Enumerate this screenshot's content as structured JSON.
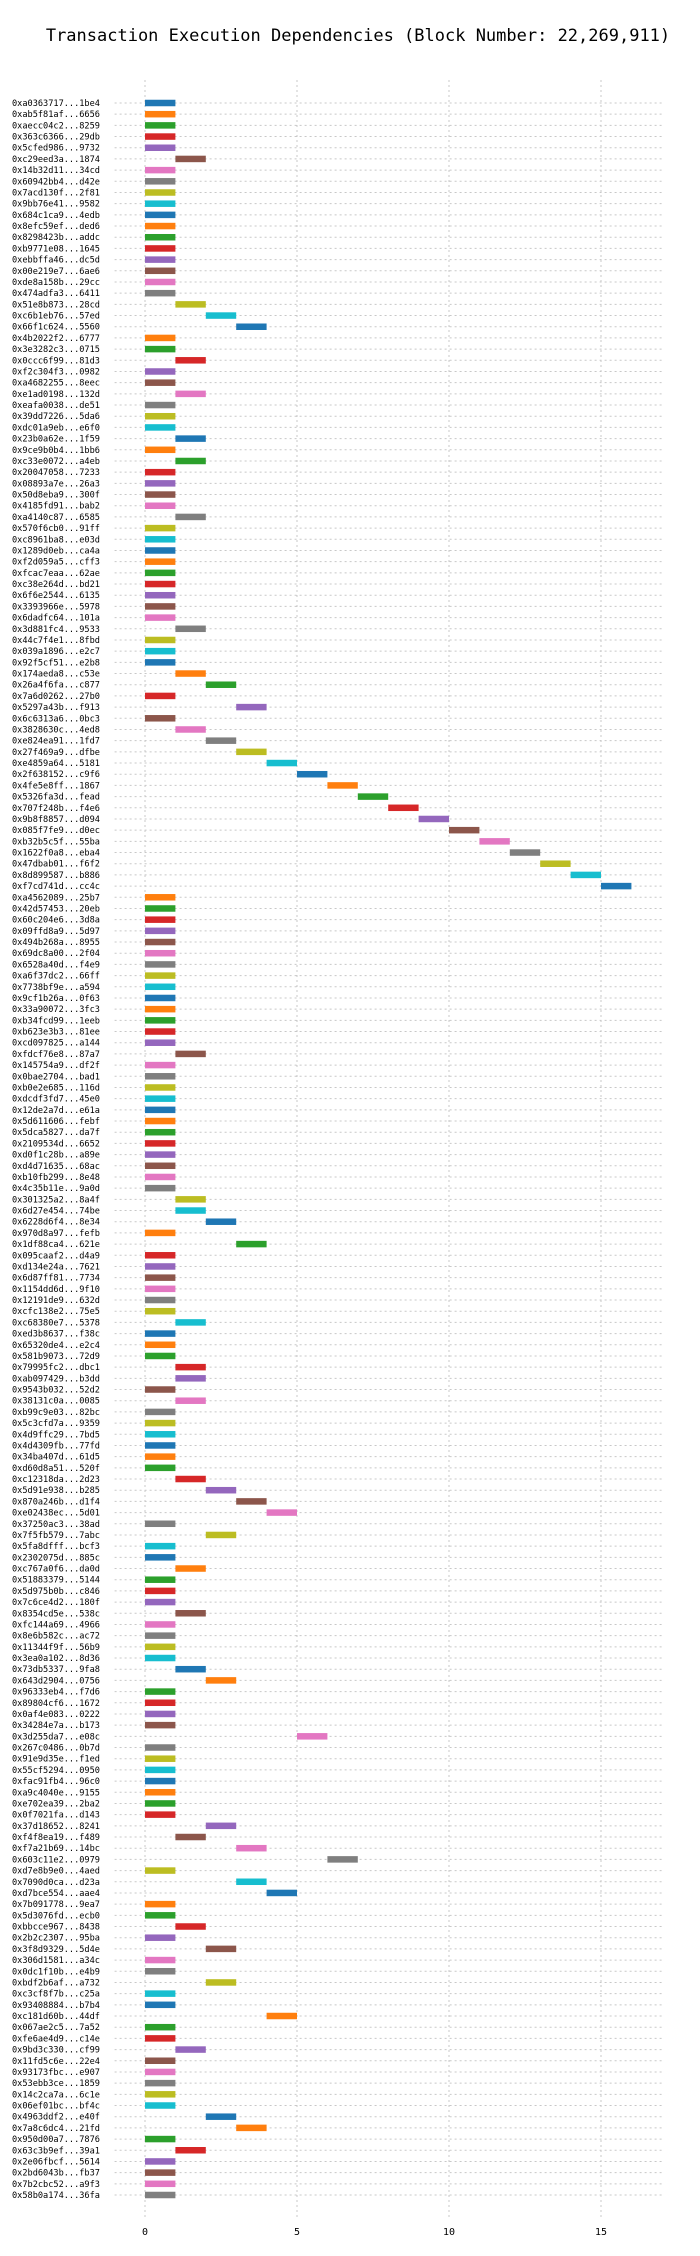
{
  "chart_data": {
    "type": "bar",
    "orientation": "horizontal-gantt",
    "title": "Transaction Execution Dependencies (Block Number: 22,269,911)",
    "xlabel": "",
    "ylabel": "",
    "xlim": [
      -1,
      17
    ],
    "xticks": [
      0,
      5,
      10,
      15
    ],
    "grid": true,
    "palette": [
      "#1f77b4",
      "#ff7f0e",
      "#2ca02c",
      "#d62728",
      "#9467bd",
      "#8c564b",
      "#e377c2",
      "#7f7f7f",
      "#bcbd22",
      "#17becf"
    ],
    "transactions": [
      {
        "label": "0xa0363717...1be4",
        "start": 0
      },
      {
        "label": "0xab5f81af...6656",
        "start": 0
      },
      {
        "label": "0xaecc04c2...8259",
        "start": 0
      },
      {
        "label": "0x363c6366...29db",
        "start": 0
      },
      {
        "label": "0x5cfed986...9732",
        "start": 0
      },
      {
        "label": "0xc29eed3a...1874",
        "start": 1
      },
      {
        "label": "0x14b32d11...34cd",
        "start": 0
      },
      {
        "label": "0x60942bb4...d42e",
        "start": 0
      },
      {
        "label": "0x7acd130f...2f81",
        "start": 0
      },
      {
        "label": "0x9bb76e41...9582",
        "start": 0
      },
      {
        "label": "0x684c1ca9...4edb",
        "start": 0
      },
      {
        "label": "0x8efc59ef...ded6",
        "start": 0
      },
      {
        "label": "0x8298423b...addc",
        "start": 0
      },
      {
        "label": "0xb9771e08...1645",
        "start": 0
      },
      {
        "label": "0xebbffa46...dc5d",
        "start": 0
      },
      {
        "label": "0x00e219e7...6ae6",
        "start": 0
      },
      {
        "label": "0xde8a158b...29cc",
        "start": 0
      },
      {
        "label": "0x474adfa3...6411",
        "start": 0
      },
      {
        "label": "0x51e8b873...28cd",
        "start": 1
      },
      {
        "label": "0xc6b1eb76...57ed",
        "start": 2
      },
      {
        "label": "0x66f1c624...5560",
        "start": 3
      },
      {
        "label": "0x4b2022f2...6777",
        "start": 0
      },
      {
        "label": "0x3e3282c3...0715",
        "start": 0
      },
      {
        "label": "0x0ccc6f99...81d3",
        "start": 1
      },
      {
        "label": "0xf2c304f3...0982",
        "start": 0
      },
      {
        "label": "0xa4682255...8eec",
        "start": 0
      },
      {
        "label": "0xe1ad0198...132d",
        "start": 1
      },
      {
        "label": "0xeafa0038...de51",
        "start": 0
      },
      {
        "label": "0x39dd7226...5da6",
        "start": 0
      },
      {
        "label": "0xdc01a9eb...e6f0",
        "start": 0
      },
      {
        "label": "0x23b0a62e...1f59",
        "start": 1
      },
      {
        "label": "0x9ce9b0b4...1bb6",
        "start": 0
      },
      {
        "label": "0xc33e0072...a4eb",
        "start": 1
      },
      {
        "label": "0x20047058...7233",
        "start": 0
      },
      {
        "label": "0x08893a7e...26a3",
        "start": 0
      },
      {
        "label": "0x50d8eba9...300f",
        "start": 0
      },
      {
        "label": "0x4185fd91...bab2",
        "start": 0
      },
      {
        "label": "0xa4140c87...6585",
        "start": 1
      },
      {
        "label": "0x570f6cb0...91ff",
        "start": 0
      },
      {
        "label": "0xc8961ba8...e03d",
        "start": 0
      },
      {
        "label": "0x1289d0eb...ca4a",
        "start": 0
      },
      {
        "label": "0xf2d059a5...cff3",
        "start": 0
      },
      {
        "label": "0xfcac7eaa...62ae",
        "start": 0
      },
      {
        "label": "0xc38e264d...bd21",
        "start": 0
      },
      {
        "label": "0x6f6e2544...6135",
        "start": 0
      },
      {
        "label": "0x3393966e...5978",
        "start": 0
      },
      {
        "label": "0x6dadfc64...101a",
        "start": 0
      },
      {
        "label": "0x3d881fc4...9533",
        "start": 1
      },
      {
        "label": "0x44c7f4e1...8fbd",
        "start": 0
      },
      {
        "label": "0x039a1896...e2c7",
        "start": 0
      },
      {
        "label": "0x92f5cf51...e2b8",
        "start": 0
      },
      {
        "label": "0x174aeda8...c53e",
        "start": 1
      },
      {
        "label": "0x26a4f6fa...c877",
        "start": 2
      },
      {
        "label": "0x7a6d0262...27b0",
        "start": 0
      },
      {
        "label": "0x5297a43b...f913",
        "start": 3
      },
      {
        "label": "0x6c6313a6...0bc3",
        "start": 0
      },
      {
        "label": "0x3828630c...4ed8",
        "start": 1
      },
      {
        "label": "0xe824ea91...1fd7",
        "start": 2
      },
      {
        "label": "0x27f469a9...dfbe",
        "start": 3
      },
      {
        "label": "0xe4859a64...5181",
        "start": 4
      },
      {
        "label": "0x2f638152...c9f6",
        "start": 5
      },
      {
        "label": "0x4fe5e8ff...1867",
        "start": 6
      },
      {
        "label": "0x5326fa3d...fead",
        "start": 7
      },
      {
        "label": "0x707f248b...f4e6",
        "start": 8
      },
      {
        "label": "0x9b8f8857...d094",
        "start": 9
      },
      {
        "label": "0x085f7fe9...d0ec",
        "start": 10
      },
      {
        "label": "0xb32b5c5f...55ba",
        "start": 11
      },
      {
        "label": "0x1622f0a8...eba4",
        "start": 12
      },
      {
        "label": "0x47dbab01...f6f2",
        "start": 13
      },
      {
        "label": "0x8d899587...b886",
        "start": 14
      },
      {
        "label": "0xf7cd741d...cc4c",
        "start": 15
      },
      {
        "label": "0xa4562089...25b7",
        "start": 0
      },
      {
        "label": "0x42d57453...20eb",
        "start": 0
      },
      {
        "label": "0x60c204e6...3d8a",
        "start": 0
      },
      {
        "label": "0x09ffd8a9...5d97",
        "start": 0
      },
      {
        "label": "0x494b268a...8955",
        "start": 0
      },
      {
        "label": "0x69dc8a00...2f04",
        "start": 0
      },
      {
        "label": "0x6528a40d...f4e9",
        "start": 0
      },
      {
        "label": "0xa6f37dc2...66ff",
        "start": 0
      },
      {
        "label": "0x7738bf9e...a594",
        "start": 0
      },
      {
        "label": "0x9cf1b26a...0f63",
        "start": 0
      },
      {
        "label": "0x33a90072...3fc3",
        "start": 0
      },
      {
        "label": "0xb34fcd99...1eeb",
        "start": 0
      },
      {
        "label": "0xb623e3b3...81ee",
        "start": 0
      },
      {
        "label": "0xcd097825...a144",
        "start": 0
      },
      {
        "label": "0xfdcf76e8...87a7",
        "start": 1
      },
      {
        "label": "0x145754a9...df2f",
        "start": 0
      },
      {
        "label": "0x0bae2704...bad1",
        "start": 0
      },
      {
        "label": "0xb0e2e685...116d",
        "start": 0
      },
      {
        "label": "0xdcdf3fd7...45e0",
        "start": 0
      },
      {
        "label": "0x12de2a7d...e61a",
        "start": 0
      },
      {
        "label": "0x5d611606...febf",
        "start": 0
      },
      {
        "label": "0x5dca5827...da7f",
        "start": 0
      },
      {
        "label": "0x2109534d...6652",
        "start": 0
      },
      {
        "label": "0xd0f1c28b...a89e",
        "start": 0
      },
      {
        "label": "0xd4d71635...68ac",
        "start": 0
      },
      {
        "label": "0xb10fb299...8e48",
        "start": 0
      },
      {
        "label": "0x4c35b11e...9a0d",
        "start": 0
      },
      {
        "label": "0x301325a2...8a4f",
        "start": 1
      },
      {
        "label": "0x6d27e454...74be",
        "start": 1
      },
      {
        "label": "0x6228d6f4...8e34",
        "start": 2
      },
      {
        "label": "0x970d8a97...fefb",
        "start": 0
      },
      {
        "label": "0x1df88ca4...621e",
        "start": 3
      },
      {
        "label": "0x095caaf2...d4a9",
        "start": 0
      },
      {
        "label": "0xd134e24a...7621",
        "start": 0
      },
      {
        "label": "0x6d87ff81...7734",
        "start": 0
      },
      {
        "label": "0x1154dd6d...9f10",
        "start": 0
      },
      {
        "label": "0x12191de9...632d",
        "start": 0
      },
      {
        "label": "0xcfc138e2...75e5",
        "start": 0
      },
      {
        "label": "0xc68380e7...5378",
        "start": 1
      },
      {
        "label": "0xed3b8637...f38c",
        "start": 0
      },
      {
        "label": "0x65320de4...e2c4",
        "start": 0
      },
      {
        "label": "0x581b9073...72d9",
        "start": 0
      },
      {
        "label": "0x79995fc2...dbc1",
        "start": 1
      },
      {
        "label": "0xab097429...b3dd",
        "start": 1
      },
      {
        "label": "0x9543b032...52d2",
        "start": 0
      },
      {
        "label": "0x38131c0a...0085",
        "start": 1
      },
      {
        "label": "0xb99c9e03...82bc",
        "start": 0
      },
      {
        "label": "0x5c3cfd7a...9359",
        "start": 0
      },
      {
        "label": "0x4d9ffc29...7bd5",
        "start": 0
      },
      {
        "label": "0x4d4309fb...77fd",
        "start": 0
      },
      {
        "label": "0x34ba407d...61d5",
        "start": 0
      },
      {
        "label": "0xd60d8a51...520f",
        "start": 0
      },
      {
        "label": "0xc12318da...2d23",
        "start": 1
      },
      {
        "label": "0x5d91e938...b285",
        "start": 2
      },
      {
        "label": "0x870a246b...d1f4",
        "start": 3
      },
      {
        "label": "0xe02438ec...5d01",
        "start": 4
      },
      {
        "label": "0x37250ac3...38ad",
        "start": 0
      },
      {
        "label": "0x7f5fb579...7abc",
        "start": 2
      },
      {
        "label": "0x5fa8dfff...bcf3",
        "start": 0
      },
      {
        "label": "0x2302075d...885c",
        "start": 0
      },
      {
        "label": "0xc767a0f6...da0d",
        "start": 1
      },
      {
        "label": "0x51883379...5144",
        "start": 0
      },
      {
        "label": "0x5d975b0b...c846",
        "start": 0
      },
      {
        "label": "0x7c6ce4d2...180f",
        "start": 0
      },
      {
        "label": "0x8354cd5e...538c",
        "start": 1
      },
      {
        "label": "0xfc144a69...4966",
        "start": 0
      },
      {
        "label": "0x8e6b582c...ac72",
        "start": 0
      },
      {
        "label": "0x11344f9f...56b9",
        "start": 0
      },
      {
        "label": "0x3ea0a102...8d36",
        "start": 0
      },
      {
        "label": "0x73db5337...9fa8",
        "start": 1
      },
      {
        "label": "0x643d2904...0756",
        "start": 2
      },
      {
        "label": "0x96333eb4...f7d6",
        "start": 0
      },
      {
        "label": "0x89804cf6...1672",
        "start": 0
      },
      {
        "label": "0x0af4e083...0222",
        "start": 0
      },
      {
        "label": "0x34284e7a...b173",
        "start": 0
      },
      {
        "label": "0x3d255da7...e08c",
        "start": 5
      },
      {
        "label": "0x267c0486...0b7d",
        "start": 0
      },
      {
        "label": "0x91e9d35e...f1ed",
        "start": 0
      },
      {
        "label": "0x55cf5294...0950",
        "start": 0
      },
      {
        "label": "0xfac91fb4...96c0",
        "start": 0
      },
      {
        "label": "0xa9c4040e...9155",
        "start": 0
      },
      {
        "label": "0xe702ea39...2ba2",
        "start": 0
      },
      {
        "label": "0x0f7021fa...d143",
        "start": 0
      },
      {
        "label": "0x37d18652...8241",
        "start": 2
      },
      {
        "label": "0xf4f8ea19...f489",
        "start": 1
      },
      {
        "label": "0xf7a21b69...14bc",
        "start": 3
      },
      {
        "label": "0x603c11e2...0979",
        "start": 6
      },
      {
        "label": "0xd7e8b9e0...4aed",
        "start": 0
      },
      {
        "label": "0x7090d0ca...d23a",
        "start": 3
      },
      {
        "label": "0xd7bce554...aae4",
        "start": 4
      },
      {
        "label": "0x7b091778...9ea7",
        "start": 0
      },
      {
        "label": "0x5d3076fd...ecb0",
        "start": 0
      },
      {
        "label": "0xbbcce967...8438",
        "start": 1
      },
      {
        "label": "0x2b2c2307...95ba",
        "start": 0
      },
      {
        "label": "0x3f8d9329...5d4e",
        "start": 2
      },
      {
        "label": "0x306d1581...a34c",
        "start": 0
      },
      {
        "label": "0x0dc1f10b...e4b9",
        "start": 0
      },
      {
        "label": "0xbdf2b6af...a732",
        "start": 2
      },
      {
        "label": "0xc3cf8f7b...c25a",
        "start": 0
      },
      {
        "label": "0x93408884...b7b4",
        "start": 0
      },
      {
        "label": "0xc181d60b...44df",
        "start": 4
      },
      {
        "label": "0x067ae2c5...7a52",
        "start": 0
      },
      {
        "label": "0xfe6ae4d9...c14e",
        "start": 0
      },
      {
        "label": "0x9bd3c330...cf99",
        "start": 1
      },
      {
        "label": "0x11fd5c6e...22e4",
        "start": 0
      },
      {
        "label": "0x93173fbc...e907",
        "start": 0
      },
      {
        "label": "0x53ebb3ce...1859",
        "start": 0
      },
      {
        "label": "0x14c2ca7a...6c1e",
        "start": 0
      },
      {
        "label": "0x06ef01bc...bf4c",
        "start": 0
      },
      {
        "label": "0x4963ddf2...e40f",
        "start": 2
      },
      {
        "label": "0x7a8c6dc4...21fd",
        "start": 3
      },
      {
        "label": "0x950d00a7...7876",
        "start": 0
      },
      {
        "label": "0x63c3b9ef...39a1",
        "start": 1
      },
      {
        "label": "0x2e06fbcf...5614",
        "start": 0
      },
      {
        "label": "0x2bd6043b...fb37",
        "start": 0
      },
      {
        "label": "0x7b2cbc52...a9f3",
        "start": 0
      },
      {
        "label": "0x58b0a174...36fa",
        "start": 0
      }
    ]
  }
}
